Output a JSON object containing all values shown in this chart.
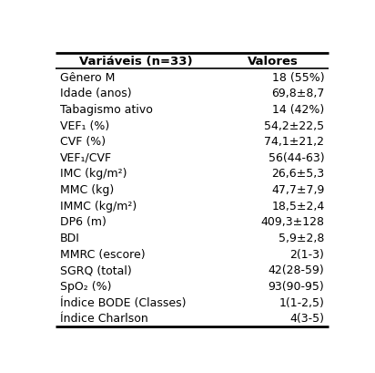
{
  "col1_header": "Variáveis (n=33)",
  "col2_header": "Valores",
  "rows": [
    [
      "Gênero M",
      "18 (55%)"
    ],
    [
      "Idade (anos)",
      "69,8±8,7"
    ],
    [
      "Tabagismo ativo",
      "14 (42%)"
    ],
    [
      "VEF₁ (%)",
      "54,2±22,5"
    ],
    [
      "CVF (%)",
      "74,1±21,2"
    ],
    [
      "VEF₁/CVF",
      "56(44-63)"
    ],
    [
      "IMC (kg/m²)",
      "26,6±5,3"
    ],
    [
      "MMC (kg)",
      "47,7±7,9"
    ],
    [
      "IMMC (kg/m²)",
      "18,5±2,4"
    ],
    [
      "DP6 (m)",
      "409,3±128"
    ],
    [
      "BDI",
      "5,9±2,8"
    ],
    [
      "MMRC (escore)",
      "2(1-3)"
    ],
    [
      "SGRQ (total)",
      "42(28-59)"
    ],
    [
      "SpO₂ (%)",
      "93(90-95)"
    ],
    [
      "Índice BODE (Classes)",
      "1(1-2,5)"
    ],
    [
      "Índice Charlson",
      "4(3-5)"
    ]
  ],
  "bg_color": "#ffffff",
  "line_color": "#000000",
  "text_color": "#000000",
  "header_fontsize": 9.5,
  "row_fontsize": 9.0,
  "fig_width": 4.12,
  "fig_height": 4.1,
  "dpi": 100
}
